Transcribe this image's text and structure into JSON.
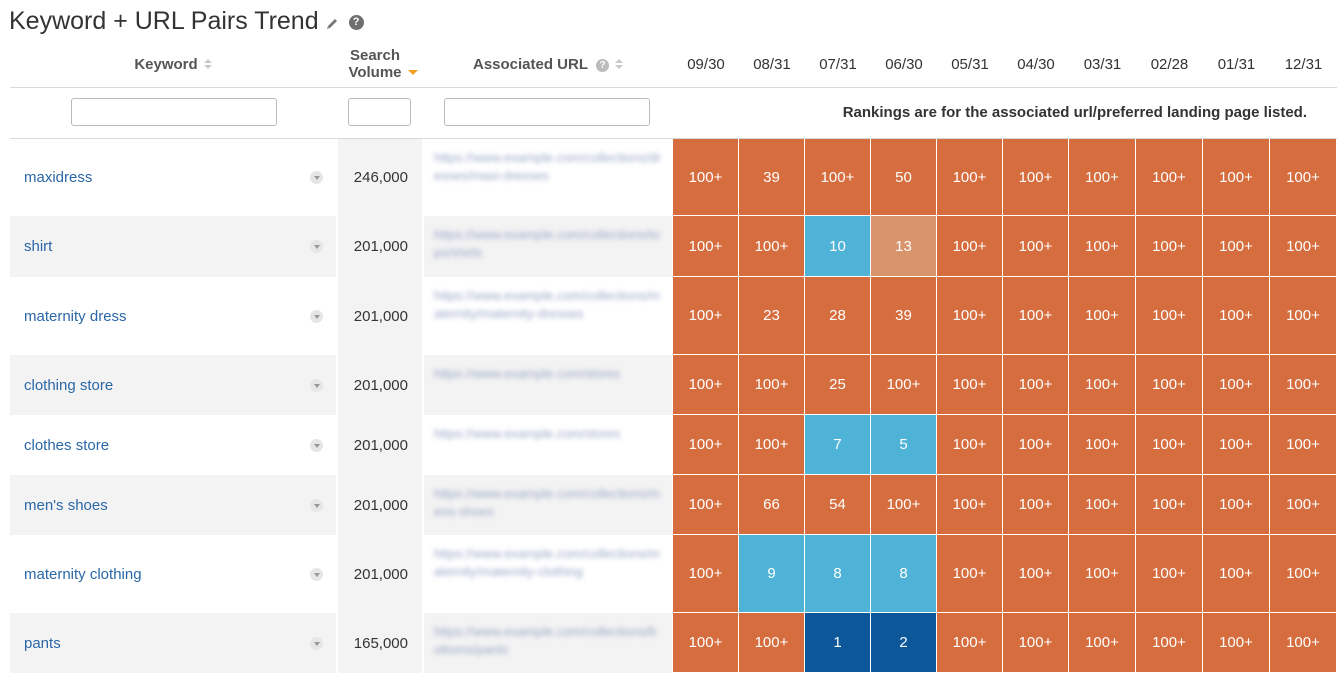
{
  "title": "Keyword + URL Pairs Trend",
  "help_glyph": "?",
  "headers": {
    "keyword": "Keyword",
    "search_volume": "Search Volume",
    "associated_url": "Associated URL",
    "dates": [
      "09/30",
      "08/31",
      "07/31",
      "06/30",
      "05/31",
      "04/30",
      "03/31",
      "02/28",
      "01/31",
      "12/31"
    ]
  },
  "note": "Rankings are for the associated url/preferred landing page listed.",
  "colors": {
    "orange": "#d56d3e",
    "light_orange": "#d8946b",
    "light_blue": "#4eb3d6",
    "dark_blue": "#0b579a"
  },
  "rows": [
    {
      "keyword": "maxidress",
      "volume": "246,000",
      "url": "https://www.example.com/collections/dresses/maxi-dresses",
      "ranks": [
        "100+",
        "39",
        "100+",
        "50",
        "100+",
        "100+",
        "100+",
        "100+",
        "100+",
        "100+"
      ],
      "colors": [
        "orange",
        "orange",
        "orange",
        "orange",
        "orange",
        "orange",
        "orange",
        "orange",
        "orange",
        "orange"
      ]
    },
    {
      "keyword": "shirt",
      "volume": "201,000",
      "url": "https://www.example.com/collections/tops/shirts",
      "ranks": [
        "100+",
        "100+",
        "10",
        "13",
        "100+",
        "100+",
        "100+",
        "100+",
        "100+",
        "100+"
      ],
      "colors": [
        "orange",
        "orange",
        "light_blue",
        "light_orange",
        "orange",
        "orange",
        "orange",
        "orange",
        "orange",
        "orange"
      ]
    },
    {
      "keyword": "maternity dress",
      "volume": "201,000",
      "url": "https://www.example.com/collections/maternity/maternity-dresses",
      "ranks": [
        "100+",
        "23",
        "28",
        "39",
        "100+",
        "100+",
        "100+",
        "100+",
        "100+",
        "100+"
      ],
      "colors": [
        "orange",
        "orange",
        "orange",
        "orange",
        "orange",
        "orange",
        "orange",
        "orange",
        "orange",
        "orange"
      ]
    },
    {
      "keyword": "clothing store",
      "volume": "201,000",
      "url": "https://www.example.com/stores",
      "ranks": [
        "100+",
        "100+",
        "25",
        "100+",
        "100+",
        "100+",
        "100+",
        "100+",
        "100+",
        "100+"
      ],
      "colors": [
        "orange",
        "orange",
        "orange",
        "orange",
        "orange",
        "orange",
        "orange",
        "orange",
        "orange",
        "orange"
      ]
    },
    {
      "keyword": "clothes store",
      "volume": "201,000",
      "url": "https://www.example.com/stores",
      "ranks": [
        "100+",
        "100+",
        "7",
        "5",
        "100+",
        "100+",
        "100+",
        "100+",
        "100+",
        "100+"
      ],
      "colors": [
        "orange",
        "orange",
        "light_blue",
        "light_blue",
        "orange",
        "orange",
        "orange",
        "orange",
        "orange",
        "orange"
      ]
    },
    {
      "keyword": "men's shoes",
      "volume": "201,000",
      "url": "https://www.example.com/collections/mens-shoes",
      "ranks": [
        "100+",
        "66",
        "54",
        "100+",
        "100+",
        "100+",
        "100+",
        "100+",
        "100+",
        "100+"
      ],
      "colors": [
        "orange",
        "orange",
        "orange",
        "orange",
        "orange",
        "orange",
        "orange",
        "orange",
        "orange",
        "orange"
      ]
    },
    {
      "keyword": "maternity clothing",
      "volume": "201,000",
      "url": "https://www.example.com/collections/maternity/maternity-clothing",
      "ranks": [
        "100+",
        "9",
        "8",
        "8",
        "100+",
        "100+",
        "100+",
        "100+",
        "100+",
        "100+"
      ],
      "colors": [
        "orange",
        "light_blue",
        "light_blue",
        "light_blue",
        "orange",
        "orange",
        "orange",
        "orange",
        "orange",
        "orange"
      ]
    },
    {
      "keyword": "pants",
      "volume": "165,000",
      "url": "https://www.example.com/collections/bottoms/pants",
      "ranks": [
        "100+",
        "100+",
        "1",
        "2",
        "100+",
        "100+",
        "100+",
        "100+",
        "100+",
        "100+"
      ],
      "colors": [
        "orange",
        "orange",
        "dark_blue",
        "dark_blue",
        "orange",
        "orange",
        "orange",
        "orange",
        "orange",
        "orange"
      ]
    }
  ]
}
